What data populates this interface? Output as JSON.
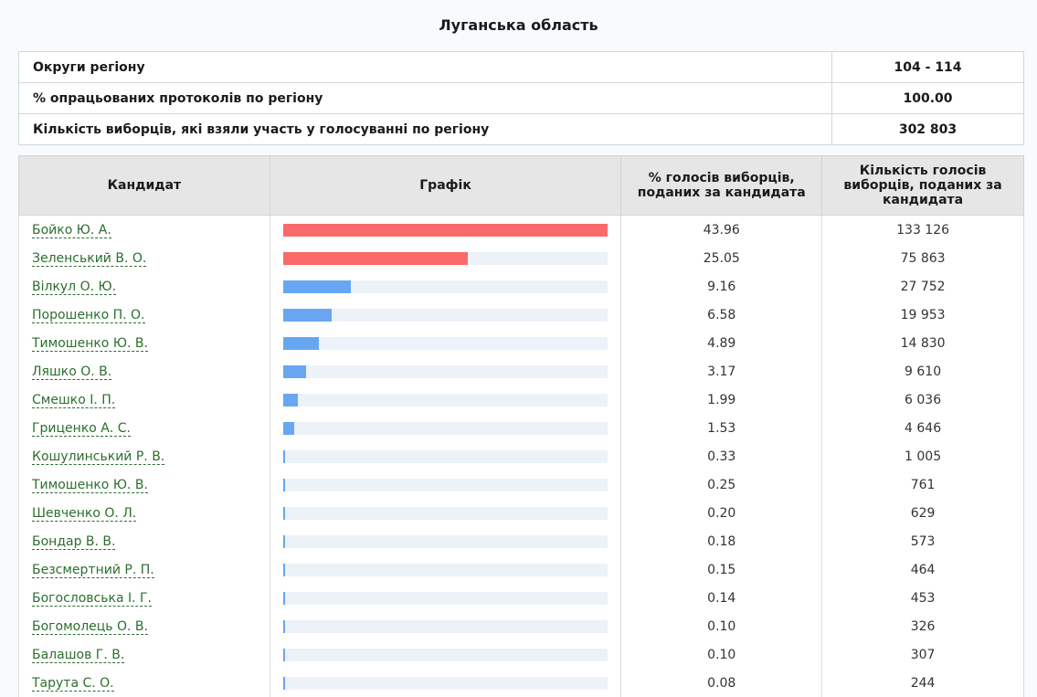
{
  "title": "Луганська область",
  "summary": [
    {
      "label": "Округи регіону",
      "value": "104 - 114"
    },
    {
      "label": "% опрацьованих протоколів по регіону",
      "value": "100.00"
    },
    {
      "label": "Кількість виборців, які взяли участь у голосуванні по регіону",
      "value": "302 803"
    }
  ],
  "table": {
    "headers": {
      "candidate": "Кандидат",
      "chart": "Графік",
      "percent": "% голосів виборців, поданих за кандидата",
      "votes": "Кількість голосів виборців, поданих за кандидата"
    },
    "colors": {
      "leader": "#fa6a6a",
      "other": "#68a6f4",
      "track": "#edf2f9",
      "link": "#2c6e2e"
    },
    "rows": [
      {
        "name": "Бойко Ю. А.",
        "percent": "43.96",
        "votes": "133 126",
        "leader": true
      },
      {
        "name": "Зеленський В. О.",
        "percent": "25.05",
        "votes": "75 863",
        "leader": true
      },
      {
        "name": "Вілкул О. Ю.",
        "percent": "9.16",
        "votes": "27 752",
        "leader": false
      },
      {
        "name": "Порошенко П. О.",
        "percent": "6.58",
        "votes": "19 953",
        "leader": false
      },
      {
        "name": "Тимошенко Ю. В.",
        "percent": "4.89",
        "votes": "14 830",
        "leader": false
      },
      {
        "name": "Ляшко О. В.",
        "percent": "3.17",
        "votes": "9 610",
        "leader": false
      },
      {
        "name": "Смешко І. П.",
        "percent": "1.99",
        "votes": "6 036",
        "leader": false
      },
      {
        "name": "Гриценко А. С.",
        "percent": "1.53",
        "votes": "4 646",
        "leader": false
      },
      {
        "name": "Кошулинський Р. В.",
        "percent": "0.33",
        "votes": "1 005",
        "leader": false
      },
      {
        "name": "Тимошенко Ю. В.",
        "percent": "0.25",
        "votes": "761",
        "leader": false
      },
      {
        "name": "Шевченко О. Л.",
        "percent": "0.20",
        "votes": "629",
        "leader": false
      },
      {
        "name": "Бондар В. В.",
        "percent": "0.18",
        "votes": "573",
        "leader": false
      },
      {
        "name": "Безсмертний Р. П.",
        "percent": "0.15",
        "votes": "464",
        "leader": false
      },
      {
        "name": "Богословська І. Г.",
        "percent": "0.14",
        "votes": "453",
        "leader": false
      },
      {
        "name": "Богомолець О. В.",
        "percent": "0.10",
        "votes": "326",
        "leader": false
      },
      {
        "name": "Балашов Г. В.",
        "percent": "0.10",
        "votes": "307",
        "leader": false
      },
      {
        "name": "Тарута С. О.",
        "percent": "0.08",
        "votes": "244",
        "leader": false
      }
    ]
  }
}
